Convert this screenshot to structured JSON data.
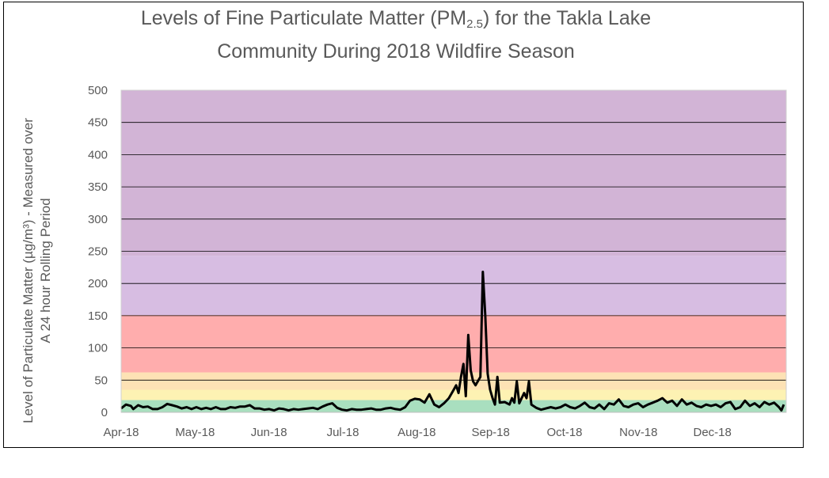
{
  "chart_data": {
    "type": "line",
    "title_line1": "Levels of Fine Particulate Matter (PM",
    "title_sub": "2.5",
    "title_line1_end": ") for the Takla Lake",
    "title_line2": "Community During 2018 Wildfire Season",
    "ylabel_line1": "Level of Particulate Matter (µg/m³) - Measured over",
    "ylabel_line2": "A 24 hour Rolling Period",
    "ylim": [
      0,
      500
    ],
    "yticks": [
      "0",
      "50",
      "100",
      "150",
      "200",
      "250",
      "300",
      "350",
      "400",
      "450",
      "500"
    ],
    "xticks": [
      "Apr-18",
      "May-18",
      "Jun-18",
      "Jul-18",
      "Aug-18",
      "Sep-18",
      "Oct-18",
      "Nov-18",
      "Dec-18"
    ],
    "xlim": [
      "2018-04-01",
      "2018-12-31"
    ],
    "grid": true,
    "bands": [
      {
        "from": 0,
        "to": 19,
        "color": "#a9dfbf"
      },
      {
        "from": 19,
        "to": 35,
        "color": "#fdf2b3"
      },
      {
        "from": 35,
        "to": 62,
        "color": "#fde2b5"
      },
      {
        "from": 62,
        "to": 151,
        "color": "#ffadad"
      },
      {
        "from": 151,
        "to": 243,
        "color": "#d7bde2"
      },
      {
        "from": 243,
        "to": 500,
        "color": "#d2b4d6"
      }
    ],
    "series": [
      {
        "color": "#000000",
        "points": [
          [
            "2018-04-01",
            6
          ],
          [
            "2018-04-03",
            12
          ],
          [
            "2018-04-05",
            10
          ],
          [
            "2018-04-06",
            5
          ],
          [
            "2018-04-08",
            11
          ],
          [
            "2018-04-10",
            8
          ],
          [
            "2018-04-12",
            9
          ],
          [
            "2018-04-14",
            5
          ],
          [
            "2018-04-16",
            5
          ],
          [
            "2018-04-18",
            8
          ],
          [
            "2018-04-20",
            13
          ],
          [
            "2018-04-22",
            11
          ],
          [
            "2018-04-24",
            9
          ],
          [
            "2018-04-26",
            6
          ],
          [
            "2018-04-28",
            8
          ],
          [
            "2018-04-30",
            5
          ],
          [
            "2018-05-02",
            8
          ],
          [
            "2018-05-04",
            5
          ],
          [
            "2018-05-06",
            7
          ],
          [
            "2018-05-08",
            5
          ],
          [
            "2018-05-10",
            8
          ],
          [
            "2018-05-12",
            5
          ],
          [
            "2018-05-14",
            5
          ],
          [
            "2018-05-16",
            8
          ],
          [
            "2018-05-18",
            7
          ],
          [
            "2018-05-20",
            9
          ],
          [
            "2018-05-22",
            9
          ],
          [
            "2018-05-24",
            11
          ],
          [
            "2018-05-26",
            6
          ],
          [
            "2018-05-28",
            6
          ],
          [
            "2018-05-30",
            4
          ],
          [
            "2018-06-01",
            5
          ],
          [
            "2018-06-03",
            3
          ],
          [
            "2018-06-05",
            6
          ],
          [
            "2018-06-07",
            5
          ],
          [
            "2018-06-09",
            3
          ],
          [
            "2018-06-11",
            5
          ],
          [
            "2018-06-13",
            4
          ],
          [
            "2018-06-15",
            5
          ],
          [
            "2018-06-17",
            6
          ],
          [
            "2018-06-19",
            7
          ],
          [
            "2018-06-21",
            5
          ],
          [
            "2018-06-23",
            9
          ],
          [
            "2018-06-25",
            12
          ],
          [
            "2018-06-27",
            14
          ],
          [
            "2018-06-29",
            7
          ],
          [
            "2018-07-01",
            4
          ],
          [
            "2018-07-03",
            3
          ],
          [
            "2018-07-05",
            5
          ],
          [
            "2018-07-07",
            4
          ],
          [
            "2018-07-09",
            4
          ],
          [
            "2018-07-11",
            5
          ],
          [
            "2018-07-13",
            6
          ],
          [
            "2018-07-15",
            4
          ],
          [
            "2018-07-17",
            4
          ],
          [
            "2018-07-19",
            6
          ],
          [
            "2018-07-21",
            7
          ],
          [
            "2018-07-23",
            5
          ],
          [
            "2018-07-25",
            4
          ],
          [
            "2018-07-27",
            8
          ],
          [
            "2018-07-29",
            18
          ],
          [
            "2018-07-31",
            21
          ],
          [
            "2018-08-02",
            20
          ],
          [
            "2018-08-04",
            15
          ],
          [
            "2018-08-06",
            28
          ],
          [
            "2018-08-08",
            12
          ],
          [
            "2018-08-10",
            8
          ],
          [
            "2018-08-12",
            14
          ],
          [
            "2018-08-14",
            22
          ],
          [
            "2018-08-16",
            35
          ],
          [
            "2018-08-17",
            42
          ],
          [
            "2018-08-18",
            30
          ],
          [
            "2018-08-19",
            55
          ],
          [
            "2018-08-20",
            75
          ],
          [
            "2018-08-21",
            25
          ],
          [
            "2018-08-22",
            120
          ],
          [
            "2018-08-23",
            65
          ],
          [
            "2018-08-24",
            48
          ],
          [
            "2018-08-25",
            42
          ],
          [
            "2018-08-27",
            55
          ],
          [
            "2018-08-28",
            218
          ],
          [
            "2018-08-29",
            150
          ],
          [
            "2018-08-30",
            60
          ],
          [
            "2018-08-31",
            35
          ],
          [
            "2018-09-01",
            22
          ],
          [
            "2018-09-02",
            12
          ],
          [
            "2018-09-03",
            55
          ],
          [
            "2018-09-04",
            15
          ],
          [
            "2018-09-06",
            16
          ],
          [
            "2018-09-08",
            12
          ],
          [
            "2018-09-09",
            22
          ],
          [
            "2018-09-10",
            15
          ],
          [
            "2018-09-11",
            48
          ],
          [
            "2018-09-12",
            14
          ],
          [
            "2018-09-14",
            30
          ],
          [
            "2018-09-15",
            22
          ],
          [
            "2018-09-16",
            48
          ],
          [
            "2018-09-17",
            12
          ],
          [
            "2018-09-19",
            7
          ],
          [
            "2018-09-21",
            4
          ],
          [
            "2018-09-23",
            6
          ],
          [
            "2018-09-25",
            8
          ],
          [
            "2018-09-27",
            6
          ],
          [
            "2018-09-29",
            8
          ],
          [
            "2018-10-01",
            12
          ],
          [
            "2018-10-03",
            8
          ],
          [
            "2018-10-05",
            6
          ],
          [
            "2018-10-07",
            10
          ],
          [
            "2018-10-09",
            15
          ],
          [
            "2018-10-11",
            8
          ],
          [
            "2018-10-13",
            6
          ],
          [
            "2018-10-15",
            12
          ],
          [
            "2018-10-17",
            5
          ],
          [
            "2018-10-19",
            14
          ],
          [
            "2018-10-21",
            12
          ],
          [
            "2018-10-23",
            20
          ],
          [
            "2018-10-25",
            10
          ],
          [
            "2018-10-27",
            8
          ],
          [
            "2018-10-29",
            12
          ],
          [
            "2018-10-31",
            14
          ],
          [
            "2018-11-02",
            8
          ],
          [
            "2018-11-04",
            12
          ],
          [
            "2018-11-06",
            15
          ],
          [
            "2018-11-08",
            18
          ],
          [
            "2018-11-10",
            22
          ],
          [
            "2018-11-12",
            15
          ],
          [
            "2018-11-14",
            18
          ],
          [
            "2018-11-16",
            10
          ],
          [
            "2018-11-18",
            20
          ],
          [
            "2018-11-20",
            12
          ],
          [
            "2018-11-22",
            15
          ],
          [
            "2018-11-24",
            10
          ],
          [
            "2018-11-26",
            8
          ],
          [
            "2018-11-28",
            12
          ],
          [
            "2018-11-30",
            10
          ],
          [
            "2018-12-02",
            12
          ],
          [
            "2018-12-04",
            8
          ],
          [
            "2018-12-06",
            14
          ],
          [
            "2018-12-08",
            16
          ],
          [
            "2018-12-10",
            5
          ],
          [
            "2018-12-12",
            8
          ],
          [
            "2018-12-14",
            18
          ],
          [
            "2018-12-16",
            10
          ],
          [
            "2018-12-18",
            14
          ],
          [
            "2018-12-20",
            8
          ],
          [
            "2018-12-22",
            16
          ],
          [
            "2018-12-24",
            12
          ],
          [
            "2018-12-26",
            15
          ],
          [
            "2018-12-28",
            8
          ],
          [
            "2018-12-29",
            3
          ],
          [
            "2018-12-30",
            12
          ]
        ]
      }
    ]
  }
}
